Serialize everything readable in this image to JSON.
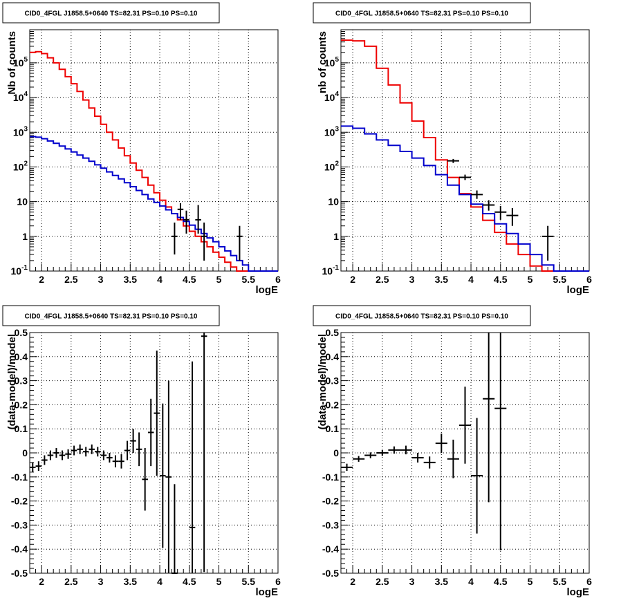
{
  "chart_data": [
    {
      "type": "line",
      "title": "CID0_4FGL J1858.5+0640 TS=82.31 PS=0.10 PS=0.10",
      "xlabel": "logE",
      "ylabel": "Nb of counts",
      "xlim": [
        1.8,
        6.0
      ],
      "ylim": [
        0.1,
        900000
      ],
      "yscale": "log",
      "grid": true,
      "xticks": [
        "2",
        "2.5",
        "3",
        "3.5",
        "4",
        "4.5",
        "5",
        "5.5",
        "6"
      ],
      "yticks": [
        "10^-1",
        "1",
        "10",
        "10^2",
        "10^3",
        "10^4",
        "10^5"
      ],
      "bin_edges": [
        1.8,
        1.9,
        2.0,
        2.1,
        2.2,
        2.3,
        2.4,
        2.5,
        2.6,
        2.7,
        2.8,
        2.9,
        3.0,
        3.1,
        3.2,
        3.3,
        3.4,
        3.5,
        3.6,
        3.7,
        3.8,
        3.9,
        4.0,
        4.1,
        4.2,
        4.3,
        4.4,
        4.5,
        4.6,
        4.7,
        4.8,
        4.9,
        5.0,
        5.1,
        5.2,
        5.3,
        5.4,
        5.5,
        5.6,
        5.7,
        5.8,
        5.9,
        6.0
      ],
      "series": [
        {
          "color": "#ee0000",
          "values": [
            200000,
            210000,
            185000,
            140000,
            100000,
            65000,
            40000,
            25000,
            15000,
            8500,
            5000,
            2900,
            1700,
            1000,
            600,
            350,
            210,
            130,
            80,
            50,
            30,
            18,
            11,
            7,
            4.5,
            3.0,
            2.0,
            1.4,
            1.0,
            0.7,
            0.5,
            0.35,
            0.25,
            0.18,
            0.13,
            0.1,
            0.1,
            0.1,
            0.1,
            0.1,
            0.1,
            0.1
          ]
        },
        {
          "color": "#0000cc",
          "values": [
            750,
            720,
            650,
            560,
            480,
            400,
            330,
            270,
            220,
            180,
            145,
            115,
            92,
            72,
            57,
            45,
            35,
            27,
            21,
            16,
            12,
            9.5,
            7.5,
            5.8,
            4.5,
            3.5,
            2.7,
            2.1,
            1.6,
            1.2,
            0.9,
            0.7,
            0.5,
            0.38,
            0.28,
            0.2,
            0.15,
            0.1,
            0.1,
            0.1,
            0.1,
            0.1
          ]
        }
      ],
      "data_points": [
        {
          "x": 4.25,
          "y": 1,
          "ylo": 0.3,
          "yhi": 2.5
        },
        {
          "x": 4.35,
          "y": 6,
          "ylo": 3,
          "yhi": 9
        },
        {
          "x": 4.45,
          "y": 3,
          "ylo": 1.2,
          "yhi": 5.5
        },
        {
          "x": 4.65,
          "y": 3,
          "ylo": 1.2,
          "yhi": 8
        },
        {
          "x": 4.75,
          "y": 1,
          "ylo": 0.2,
          "yhi": 2.5
        },
        {
          "x": 5.35,
          "y": 1,
          "ylo": 0.2,
          "yhi": 2
        }
      ]
    },
    {
      "type": "line",
      "title": "CID0_4FGL J1858.5+0640 TS=82.31 PS=0.10 PS=0.10",
      "xlabel": "logE",
      "ylabel": "nb of counts",
      "xlim": [
        1.8,
        6.0
      ],
      "ylim": [
        0.1,
        900000
      ],
      "yscale": "log",
      "grid": true,
      "xticks": [
        "2",
        "2.5",
        "3",
        "3.5",
        "4",
        "4.5",
        "5",
        "5.5",
        "6"
      ],
      "yticks": [
        "10^-1",
        "1",
        "10",
        "10^2",
        "10^3",
        "10^4",
        "10^5"
      ],
      "bin_edges": [
        1.8,
        2.0,
        2.2,
        2.4,
        2.6,
        2.8,
        3.0,
        3.2,
        3.4,
        3.6,
        3.8,
        4.0,
        4.2,
        4.4,
        4.6,
        4.8,
        5.0,
        5.2,
        5.4,
        5.6,
        5.8,
        6.0
      ],
      "series": [
        {
          "color": "#ee0000",
          "values": [
            450000,
            430000,
            300000,
            70000,
            23000,
            7000,
            2100,
            700,
            160,
            50,
            17,
            7,
            2.9,
            1.3,
            0.6,
            0.3,
            0.14,
            0.1,
            0.1,
            0.1,
            0.1
          ]
        },
        {
          "color": "#0000cc",
          "values": [
            1500,
            1300,
            900,
            600,
            420,
            280,
            180,
            110,
            60,
            30,
            16,
            8.5,
            4.5,
            2.3,
            1.2,
            0.6,
            0.3,
            0.15,
            0.1,
            0.1,
            0.1
          ]
        }
      ],
      "data_points": [
        {
          "x": 3.7,
          "y": 150,
          "ylo": 130,
          "yhi": 170
        },
        {
          "x": 3.9,
          "y": 50,
          "ylo": 42,
          "yhi": 60
        },
        {
          "x": 4.1,
          "y": 16,
          "ylo": 12,
          "yhi": 21
        },
        {
          "x": 4.3,
          "y": 8,
          "ylo": 5.5,
          "yhi": 11
        },
        {
          "x": 4.5,
          "y": 5,
          "ylo": 3,
          "yhi": 7.5
        },
        {
          "x": 4.7,
          "y": 4,
          "ylo": 2,
          "yhi": 6.5
        },
        {
          "x": 5.3,
          "y": 1,
          "ylo": 0.2,
          "yhi": 2
        }
      ]
    },
    {
      "type": "scatter",
      "title": "CID0_4FGL J1858.5+0640 TS=82.31 PS=0.10 PS=0.10",
      "xlabel": "logE",
      "ylabel": "(data-model)/model",
      "xlim": [
        1.8,
        6.0
      ],
      "ylim": [
        -0.5,
        0.5
      ],
      "grid": true,
      "xticks": [
        "2",
        "2.5",
        "3",
        "3.5",
        "4",
        "4.5",
        "5",
        "5.5",
        "6"
      ],
      "yticks": [
        "-0.5",
        "-0.4",
        "-0.3",
        "-0.2",
        "-0.1",
        "0",
        "0.1",
        "0.2",
        "0.3",
        "0.4",
        "0.5"
      ],
      "points": [
        {
          "x": 1.85,
          "y": -0.06,
          "xerr": 0.05,
          "yerr": 0.02
        },
        {
          "x": 1.95,
          "y": -0.055,
          "xerr": 0.05,
          "yerr": 0.02
        },
        {
          "x": 2.05,
          "y": -0.03,
          "xerr": 0.05,
          "yerr": 0.02
        },
        {
          "x": 2.15,
          "y": -0.01,
          "xerr": 0.05,
          "yerr": 0.02
        },
        {
          "x": 2.25,
          "y": 0.0,
          "xerr": 0.05,
          "yerr": 0.02
        },
        {
          "x": 2.35,
          "y": -0.01,
          "xerr": 0.05,
          "yerr": 0.02
        },
        {
          "x": 2.45,
          "y": -0.005,
          "xerr": 0.05,
          "yerr": 0.02
        },
        {
          "x": 2.55,
          "y": 0.01,
          "xerr": 0.05,
          "yerr": 0.02
        },
        {
          "x": 2.65,
          "y": 0.015,
          "xerr": 0.05,
          "yerr": 0.02
        },
        {
          "x": 2.75,
          "y": 0.005,
          "xerr": 0.05,
          "yerr": 0.02
        },
        {
          "x": 2.85,
          "y": 0.015,
          "xerr": 0.05,
          "yerr": 0.02
        },
        {
          "x": 2.95,
          "y": 0.005,
          "xerr": 0.05,
          "yerr": 0.02
        },
        {
          "x": 3.05,
          "y": -0.01,
          "xerr": 0.05,
          "yerr": 0.02
        },
        {
          "x": 3.15,
          "y": -0.02,
          "xerr": 0.05,
          "yerr": 0.02
        },
        {
          "x": 3.25,
          "y": -0.035,
          "xerr": 0.05,
          "yerr": 0.025
        },
        {
          "x": 3.35,
          "y": -0.035,
          "xerr": 0.05,
          "yerr": 0.03
        },
        {
          "x": 3.45,
          "y": 0.01,
          "xerr": 0.05,
          "yerr": 0.04
        },
        {
          "x": 3.55,
          "y": 0.05,
          "xerr": 0.05,
          "yerr": 0.05
        },
        {
          "x": 3.65,
          "y": 0.015,
          "xerr": 0.05,
          "yerr": 0.07
        },
        {
          "x": 3.75,
          "y": -0.11,
          "xerr": 0.05,
          "yerr": 0.13
        },
        {
          "x": 3.85,
          "y": 0.085,
          "xerr": 0.05,
          "yerr": 0.14
        },
        {
          "x": 3.95,
          "y": 0.165,
          "xerr": 0.05,
          "yerr": 0.26
        },
        {
          "x": 4.05,
          "y": -0.095,
          "xerr": 0.05,
          "yerr": 0.3
        },
        {
          "x": 4.15,
          "y": -0.1,
          "xerr": 0.05,
          "yerr": 0.4
        },
        {
          "x": 4.25,
          "y": -0.5,
          "xerr": 0.05,
          "yerr": 0.37
        },
        {
          "x": 4.55,
          "y": -0.31,
          "xerr": 0.05,
          "yerr": 0.69
        },
        {
          "x": 4.75,
          "y": 0.485,
          "xerr": 0.05,
          "yerr": 0.98
        }
      ]
    },
    {
      "type": "scatter",
      "title": "CID0_4FGL J1858.5+0640 TS=82.31 PS=0.10 PS=0.10",
      "xlabel": "logE",
      "ylabel": "(data-model)/model",
      "xlim": [
        1.8,
        6.0
      ],
      "ylim": [
        -0.5,
        0.5
      ],
      "grid": true,
      "xticks": [
        "2",
        "2.5",
        "3",
        "3.5",
        "4",
        "4.5",
        "5",
        "5.5",
        "6"
      ],
      "yticks": [
        "-0.5",
        "-0.4",
        "-0.3",
        "-0.2",
        "-0.1",
        "0",
        "0.1",
        "0.2",
        "0.3",
        "0.4",
        "0.5"
      ],
      "points": [
        {
          "x": 1.9,
          "y": -0.06,
          "xerr": 0.1,
          "yerr": 0.015
        },
        {
          "x": 2.1,
          "y": -0.025,
          "xerr": 0.1,
          "yerr": 0.012
        },
        {
          "x": 2.3,
          "y": -0.01,
          "xerr": 0.1,
          "yerr": 0.012
        },
        {
          "x": 2.5,
          "y": 0.0,
          "xerr": 0.1,
          "yerr": 0.012
        },
        {
          "x": 2.7,
          "y": 0.012,
          "xerr": 0.1,
          "yerr": 0.015
        },
        {
          "x": 2.9,
          "y": 0.012,
          "xerr": 0.1,
          "yerr": 0.018
        },
        {
          "x": 3.1,
          "y": -0.02,
          "xerr": 0.1,
          "yerr": 0.02
        },
        {
          "x": 3.3,
          "y": -0.04,
          "xerr": 0.1,
          "yerr": 0.025
        },
        {
          "x": 3.5,
          "y": 0.04,
          "xerr": 0.1,
          "yerr": 0.04
        },
        {
          "x": 3.7,
          "y": -0.025,
          "xerr": 0.1,
          "yerr": 0.08
        },
        {
          "x": 3.9,
          "y": 0.115,
          "xerr": 0.1,
          "yerr": 0.16
        },
        {
          "x": 4.1,
          "y": -0.095,
          "xerr": 0.1,
          "yerr": 0.24
        },
        {
          "x": 4.3,
          "y": 0.225,
          "xerr": 0.1,
          "yerr": 0.43
        },
        {
          "x": 4.5,
          "y": 0.185,
          "xerr": 0.1,
          "yerr": 0.59
        }
      ]
    }
  ]
}
